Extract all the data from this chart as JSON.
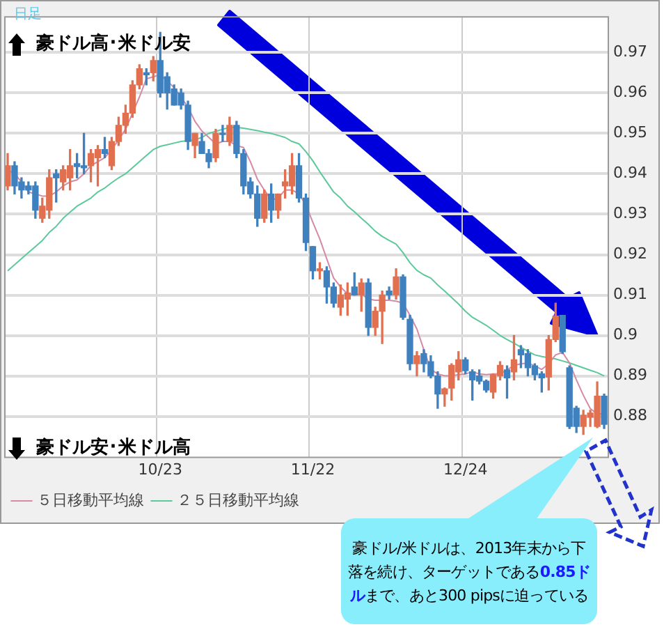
{
  "chart_data": {
    "type": "candlestick",
    "categories": [
      null,
      null,
      null,
      null,
      null,
      null,
      null,
      null,
      null,
      null,
      null,
      null,
      null,
      null,
      null,
      null,
      null,
      null,
      null,
      null,
      null,
      null,
      "10/23",
      null,
      null,
      null,
      null,
      null,
      null,
      null,
      null,
      null,
      null,
      null,
      null,
      null,
      null,
      null,
      null,
      null,
      null,
      null,
      null,
      null,
      "11/22",
      null,
      null,
      null,
      null,
      null,
      null,
      null,
      null,
      null,
      null,
      null,
      null,
      null,
      null,
      null,
      null,
      null,
      null,
      null,
      null,
      null,
      "12/24",
      null,
      null,
      null,
      null,
      null,
      null,
      null,
      null,
      null,
      null,
      null,
      null,
      null,
      null,
      null,
      null,
      null,
      null,
      null,
      null
    ],
    "ohlc": [
      [
        0.937,
        0.945,
        0.936,
        0.942
      ],
      [
        0.942,
        0.943,
        0.935,
        0.937
      ],
      [
        0.938,
        0.939,
        0.934,
        0.936
      ],
      [
        0.937,
        0.938,
        0.935,
        0.936
      ],
      [
        0.937,
        0.938,
        0.929,
        0.931
      ],
      [
        0.929,
        0.934,
        0.928,
        0.932
      ],
      [
        0.931,
        0.941,
        0.929,
        0.939
      ],
      [
        0.94,
        0.941,
        0.933,
        0.939
      ],
      [
        0.938,
        0.942,
        0.936,
        0.941
      ],
      [
        0.939,
        0.946,
        0.936,
        0.942
      ],
      [
        0.9425,
        0.945,
        0.939,
        0.9418
      ],
      [
        0.942,
        0.95,
        0.94,
        0.9415
      ],
      [
        0.942,
        0.946,
        0.938,
        0.945
      ],
      [
        0.944,
        0.947,
        0.937,
        0.946
      ],
      [
        0.946,
        0.949,
        0.944,
        0.945
      ],
      [
        0.942,
        0.949,
        0.941,
        0.948
      ],
      [
        0.948,
        0.954,
        0.947,
        0.952
      ],
      [
        0.952,
        0.957,
        0.95,
        0.955
      ],
      [
        0.955,
        0.963,
        0.954,
        0.962
      ],
      [
        0.962,
        0.967,
        0.961,
        0.966
      ],
      [
        0.965,
        0.966,
        0.962,
        0.9645
      ],
      [
        0.965,
        0.969,
        0.963,
        0.968
      ],
      [
        0.968,
        0.975,
        0.959,
        0.96
      ],
      [
        0.964,
        0.965,
        0.956,
        0.96
      ],
      [
        0.961,
        0.962,
        0.957,
        0.957
      ],
      [
        0.96,
        0.961,
        0.956,
        0.957
      ],
      [
        0.957,
        0.958,
        0.946,
        0.948
      ],
      [
        0.947,
        0.95,
        0.944,
        0.95
      ],
      [
        0.948,
        0.95,
        0.945,
        0.945
      ],
      [
        0.945,
        0.946,
        0.9415,
        0.943
      ],
      [
        0.944,
        0.951,
        0.943,
        0.95
      ],
      [
        0.95,
        0.952,
        0.948,
        0.9497
      ],
      [
        0.948,
        0.954,
        0.947,
        0.952
      ],
      [
        0.952,
        0.953,
        0.944,
        0.945
      ],
      [
        0.945,
        0.946,
        0.935,
        0.937
      ],
      [
        0.938,
        0.939,
        0.934,
        0.935
      ],
      [
        0.935,
        0.937,
        0.927,
        0.929
      ],
      [
        0.929,
        0.936,
        0.928,
        0.935
      ],
      [
        0.935,
        0.9375,
        0.928,
        0.931
      ],
      [
        0.931,
        0.935,
        0.929,
        0.935
      ],
      [
        0.937,
        0.941,
        0.934,
        0.938
      ],
      [
        0.937,
        0.945,
        0.935,
        0.942
      ],
      [
        0.942,
        0.945,
        0.933,
        0.934
      ],
      [
        0.934,
        0.935,
        0.921,
        0.923
      ],
      [
        0.922,
        0.922,
        0.914,
        0.916
      ],
      [
        0.916,
        0.918,
        0.914,
        0.9165
      ],
      [
        0.916,
        0.917,
        0.908,
        0.912
      ],
      [
        0.912,
        0.913,
        0.907,
        0.908
      ],
      [
        0.907,
        0.9125,
        0.905,
        0.91
      ],
      [
        0.909,
        0.913,
        0.905,
        0.9105
      ],
      [
        0.912,
        0.9155,
        0.91,
        0.91
      ],
      [
        0.91,
        0.914,
        0.906,
        0.913
      ],
      [
        0.913,
        0.914,
        0.9,
        0.902
      ],
      [
        0.902,
        0.907,
        0.9,
        0.906
      ],
      [
        0.906,
        0.911,
        0.898,
        0.91
      ],
      [
        0.911,
        0.912,
        0.909,
        0.91
      ],
      [
        0.91,
        0.9165,
        0.909,
        0.9145
      ],
      [
        0.9145,
        0.915,
        0.904,
        0.9045
      ],
      [
        0.904,
        0.905,
        0.8915,
        0.893
      ],
      [
        0.893,
        0.896,
        0.89,
        0.895
      ],
      [
        0.8955,
        0.8965,
        0.891,
        0.893
      ],
      [
        0.8935,
        0.895,
        0.8895,
        0.89
      ],
      [
        0.89,
        0.891,
        0.882,
        0.8855
      ],
      [
        0.8855,
        0.887,
        0.8825,
        0.8868
      ],
      [
        0.887,
        0.893,
        0.884,
        0.8926
      ],
      [
        0.891,
        0.896,
        0.889,
        0.894
      ],
      [
        0.894,
        0.8945,
        0.8905,
        0.8913
      ],
      [
        0.891,
        0.8915,
        0.884,
        0.889
      ],
      [
        0.89,
        0.8915,
        0.888,
        0.8887
      ],
      [
        0.8887,
        0.889,
        0.886,
        0.8865
      ],
      [
        0.886,
        0.8905,
        0.8845,
        0.8903
      ],
      [
        0.89,
        0.8935,
        0.889,
        0.8926
      ],
      [
        0.8915,
        0.8925,
        0.8845,
        0.8895
      ],
      [
        0.891,
        0.9,
        0.889,
        0.894
      ],
      [
        0.8965,
        0.8975,
        0.892,
        0.8952
      ],
      [
        0.8955,
        0.8965,
        0.89,
        0.892
      ],
      [
        0.8925,
        0.893,
        0.889,
        0.8903
      ],
      [
        0.8905,
        0.891,
        0.886,
        0.8895
      ],
      [
        0.8897,
        0.9,
        0.8865,
        0.899
      ],
      [
        0.899,
        0.908,
        0.8985,
        0.9048
      ],
      [
        0.905,
        0.905,
        0.8955,
        0.896
      ],
      [
        0.892,
        0.8925,
        0.877,
        0.8775
      ],
      [
        0.882,
        0.8825,
        0.876,
        0.8775
      ],
      [
        0.8775,
        0.8815,
        0.8755,
        0.8803
      ],
      [
        0.8798,
        0.8815,
        0.8775,
        0.8808
      ],
      [
        0.8775,
        0.8885,
        0.8772,
        0.885
      ],
      [
        0.885,
        0.8855,
        0.877,
        0.878
      ]
    ],
    "colors": [
      "#e0704f",
      "#3f80bf",
      "#3f80bf",
      "#3f80bf",
      "#3f80bf",
      "#e0704f",
      "#e0704f",
      "#3f80bf",
      "#e0704f",
      "#e0704f",
      "#3f80bf",
      "#3f80bf",
      "#e0704f",
      "#e0704f",
      "#3f80bf",
      "#e0704f",
      "#e0704f",
      "#e0704f",
      "#e0704f",
      "#e0704f",
      "#3f80bf",
      "#e0704f",
      "#3f80bf",
      "#3f80bf",
      "#3f80bf",
      "#3f80bf",
      "#3f80bf",
      "#e0704f",
      "#3f80bf",
      "#3f80bf",
      "#e0704f",
      "#3f80bf",
      "#e0704f",
      "#3f80bf",
      "#3f80bf",
      "#3f80bf",
      "#3f80bf",
      "#e0704f",
      "#3f80bf",
      "#e0704f",
      "#e0704f",
      "#e0704f",
      "#3f80bf",
      "#3f80bf",
      "#3f80bf",
      "#e0704f",
      "#3f80bf",
      "#3f80bf",
      "#e0704f",
      "#e0704f",
      "#3f80bf",
      "#e0704f",
      "#3f80bf",
      "#e0704f",
      "#e0704f",
      "#3f80bf",
      "#e0704f",
      "#3f80bf",
      "#3f80bf",
      "#e0704f",
      "#3f80bf",
      "#3f80bf",
      "#3f80bf",
      "#e0704f",
      "#e0704f",
      "#e0704f",
      "#3f80bf",
      "#3f80bf",
      "#3f80bf",
      "#3f80bf",
      "#e0704f",
      "#e0704f",
      "#3f80bf",
      "#e0704f",
      "#3f80bf",
      "#3f80bf",
      "#3f80bf",
      "#3f80bf",
      "#e0704f",
      "#e0704f",
      "#3f80bf",
      "#3f80bf",
      "#3f80bf",
      "#e0704f",
      "#e0704f",
      "#e0704f",
      "#3f80bf"
    ],
    "series": [
      {
        "name": "５日移動平均線",
        "type": "line",
        "color": "#d48aa6",
        "values": [
          0.941,
          0.94,
          0.938,
          0.9355,
          0.935,
          0.9345,
          0.9345,
          0.9355,
          0.937,
          0.938,
          0.9385,
          0.94,
          0.942,
          0.943,
          0.944,
          0.946,
          0.9484,
          0.951,
          0.955,
          0.959,
          0.9635,
          0.964,
          0.9645,
          0.963,
          0.9613,
          0.959,
          0.9565,
          0.953,
          0.9506,
          0.949,
          0.9474,
          0.948,
          0.948,
          0.947,
          0.9465,
          0.943,
          0.9387,
          0.936,
          0.9335,
          0.934,
          0.936,
          0.936,
          0.935,
          0.9323,
          0.928,
          0.9239,
          0.919,
          0.9142,
          0.912,
          0.9103,
          0.91,
          0.9103,
          0.909,
          0.9087,
          0.9087,
          0.9087,
          0.9085,
          0.908,
          0.905,
          0.9016,
          0.8965,
          0.8916,
          0.8905,
          0.89,
          0.89,
          0.8903,
          0.8905,
          0.891,
          0.8905,
          0.8903,
          0.8905,
          0.8905,
          0.8915,
          0.8926,
          0.893,
          0.8932,
          0.8925,
          0.8916,
          0.893,
          0.8952,
          0.8958,
          0.8932,
          0.889,
          0.8852,
          0.8819,
          0.8806,
          0.8806
        ]
      },
      {
        "name": "２５日移動平均線",
        "type": "line",
        "color": "#5cc99a",
        "values": [
          0.916,
          0.9175,
          0.919,
          0.9205,
          0.922,
          0.9235,
          0.9255,
          0.927,
          0.929,
          0.9305,
          0.932,
          0.933,
          0.934,
          0.9355,
          0.9365,
          0.9378,
          0.939,
          0.94,
          0.9415,
          0.943,
          0.9445,
          0.946,
          0.9468,
          0.9472,
          0.9476,
          0.948,
          0.9482,
          0.9484,
          0.949,
          0.95,
          0.9505,
          0.951,
          0.9515,
          0.9515,
          0.9513,
          0.951,
          0.9507,
          0.9503,
          0.95,
          0.9495,
          0.949,
          0.948,
          0.9474,
          0.9455,
          0.9432,
          0.9405,
          0.938,
          0.9355,
          0.934,
          0.932,
          0.9306,
          0.929,
          0.9275,
          0.9258,
          0.9245,
          0.9235,
          0.9226,
          0.9205,
          0.918,
          0.9161,
          0.915,
          0.9142,
          0.9125,
          0.911,
          0.9094,
          0.9078,
          0.906,
          0.9045,
          0.9035,
          0.9025,
          0.9013,
          0.9,
          0.899,
          0.8981,
          0.8971,
          0.8961,
          0.8952,
          0.8948,
          0.8945,
          0.8942,
          0.8937,
          0.8932,
          0.8926,
          0.892,
          0.8914,
          0.8908,
          0.89
        ]
      }
    ],
    "ylim": [
      0.87,
      0.979
    ],
    "yticks": [
      0.88,
      0.89,
      0.9,
      0.91,
      0.92,
      0.93,
      0.94,
      0.95,
      0.96,
      0.97
    ],
    "grid": true,
    "legend": "bottom",
    "marker": "none",
    "line_style": "solid",
    "annotations": [
      "日足",
      "豪ドル高･米ドル安",
      "豪ドル安･米ドル高",
      "豪ドル/米ドルは、2013年末から下落を続け、ターゲットである",
      "0.85ドル",
      "まで、あと300 pipsに迫っている"
    ]
  }
}
